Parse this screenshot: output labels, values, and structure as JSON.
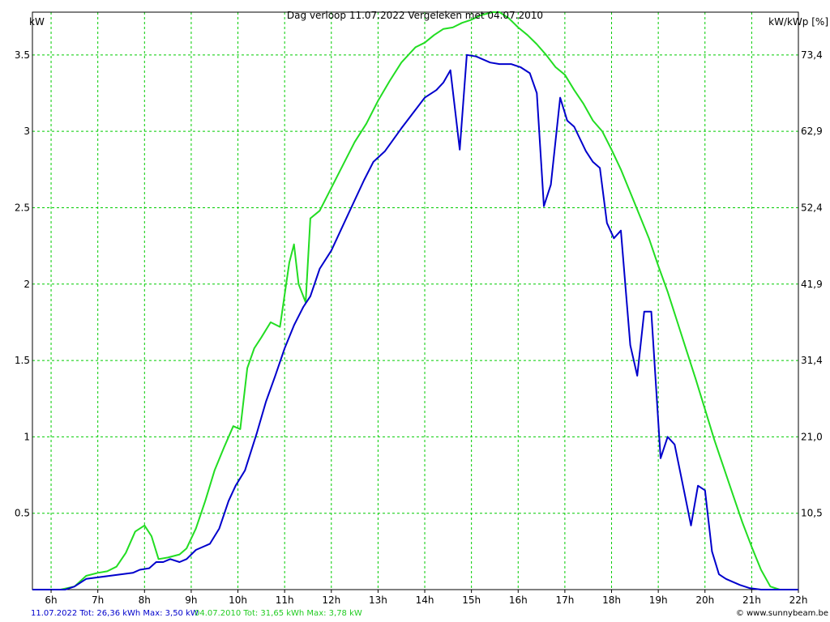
{
  "header": {
    "title": "Dag  verloop 11.07.2022   Vergeleken met 04.07.2010",
    "left_unit": "kW",
    "right_unit": "kW/kWp [%]"
  },
  "footer": {
    "legend_series_1": "11.07.2022 Tot: 26,36 kWh Max: 3,50 kW",
    "legend_series_2": "04.07.2010 Tot: 31,65 kWh Max: 3,78 kW",
    "credit": "© www.sunnybeam.be"
  },
  "colors": {
    "series_1": "#0000cc",
    "series_2": "#22dd22",
    "grid": "#00cc00",
    "axis": "#000000"
  },
  "chart_data": {
    "type": "line",
    "xlim": [
      5.6,
      22
    ],
    "ylim": [
      0,
      3.78
    ],
    "grid": true,
    "x_ticks": [
      6,
      7,
      8,
      9,
      10,
      11,
      12,
      13,
      14,
      15,
      16,
      17,
      18,
      19,
      20,
      21,
      22
    ],
    "x_tick_labels": [
      "6h",
      "7h",
      "8h",
      "9h",
      "10h",
      "11h",
      "12h",
      "13h",
      "14h",
      "15h",
      "16h",
      "17h",
      "18h",
      "19h",
      "20h",
      "21h",
      "22h"
    ],
    "y_ticks": [
      0.5,
      1,
      1.5,
      2,
      2.5,
      3,
      3.5
    ],
    "y_tick_labels": [
      "0.5",
      "1",
      "1.5",
      "2",
      "2.5",
      "3",
      "3.5"
    ],
    "y2_ticks": [
      0.5,
      1,
      1.5,
      2,
      2.5,
      3,
      3.5
    ],
    "y2_tick_labels": [
      "10,5",
      "21,0",
      "31,4",
      "41,9",
      "52,4",
      "62,9",
      "73,4"
    ],
    "series": [
      {
        "name": "11.07.2022",
        "x": [
          5.6,
          6.3,
          6.5,
          6.75,
          7.0,
          7.25,
          7.5,
          7.75,
          7.9,
          8.1,
          8.25,
          8.4,
          8.55,
          8.75,
          8.9,
          9.1,
          9.4,
          9.6,
          9.8,
          9.95,
          10.15,
          10.4,
          10.6,
          10.8,
          11.0,
          11.2,
          11.4,
          11.55,
          11.75,
          12.0,
          12.35,
          12.7,
          12.9,
          13.15,
          13.5,
          13.75,
          14.0,
          14.25,
          14.4,
          14.55,
          14.75,
          14.9,
          15.1,
          15.4,
          15.6,
          15.85,
          16.05,
          16.25,
          16.4,
          16.55,
          16.7,
          16.9,
          17.05,
          17.2,
          17.45,
          17.6,
          17.75,
          17.9,
          18.05,
          18.2,
          18.4,
          18.55,
          18.7,
          18.85,
          19.05,
          19.2,
          19.35,
          19.55,
          19.7,
          19.85,
          20.0,
          20.15,
          20.3,
          20.45,
          20.6,
          20.75,
          20.95,
          21.2,
          21.55,
          21.8,
          22.0
        ],
        "y": [
          0,
          0,
          0.02,
          0.07,
          0.08,
          0.09,
          0.1,
          0.11,
          0.13,
          0.14,
          0.18,
          0.18,
          0.2,
          0.18,
          0.2,
          0.26,
          0.3,
          0.4,
          0.58,
          0.68,
          0.78,
          1.02,
          1.23,
          1.4,
          1.58,
          1.73,
          1.85,
          1.92,
          2.1,
          2.22,
          2.45,
          2.68,
          2.8,
          2.87,
          3.02,
          3.12,
          3.22,
          3.27,
          3.32,
          3.4,
          2.88,
          3.5,
          3.49,
          3.45,
          3.44,
          3.44,
          3.42,
          3.38,
          3.25,
          2.51,
          2.65,
          3.22,
          3.07,
          3.03,
          2.87,
          2.8,
          2.76,
          2.4,
          2.3,
          2.35,
          1.6,
          1.4,
          1.82,
          1.82,
          0.86,
          1.0,
          0.95,
          0.65,
          0.42,
          0.68,
          0.65,
          0.25,
          0.1,
          0.07,
          0.05,
          0.03,
          0.01,
          0,
          0,
          0,
          0
        ]
      },
      {
        "name": "04.07.2010",
        "x": [
          5.6,
          6.2,
          6.5,
          6.75,
          7.0,
          7.2,
          7.4,
          7.6,
          7.8,
          8.0,
          8.15,
          8.3,
          8.5,
          8.75,
          8.9,
          9.1,
          9.3,
          9.5,
          9.7,
          9.9,
          10.05,
          10.2,
          10.35,
          10.5,
          10.7,
          10.9,
          11.1,
          11.2,
          11.3,
          11.45,
          11.55,
          11.75,
          12.0,
          12.25,
          12.5,
          12.75,
          13.0,
          13.25,
          13.5,
          13.8,
          14.0,
          14.2,
          14.4,
          14.6,
          14.8,
          15.0,
          15.2,
          15.45,
          15.6,
          15.8,
          16.0,
          16.2,
          16.4,
          16.6,
          16.8,
          17.0,
          17.2,
          17.4,
          17.6,
          17.8,
          18.0,
          18.2,
          18.4,
          18.6,
          18.8,
          19.0,
          19.2,
          19.4,
          19.6,
          19.8,
          20.0,
          20.2,
          20.4,
          20.6,
          20.8,
          21.0,
          21.2,
          21.4,
          21.6,
          22.0
        ],
        "y": [
          0,
          0,
          0.02,
          0.09,
          0.11,
          0.12,
          0.15,
          0.24,
          0.38,
          0.42,
          0.35,
          0.2,
          0.21,
          0.23,
          0.27,
          0.4,
          0.58,
          0.78,
          0.93,
          1.07,
          1.05,
          1.45,
          1.58,
          1.65,
          1.75,
          1.72,
          2.14,
          2.26,
          2.0,
          1.88,
          2.43,
          2.48,
          2.63,
          2.78,
          2.93,
          3.05,
          3.2,
          3.33,
          3.45,
          3.55,
          3.58,
          3.63,
          3.67,
          3.68,
          3.71,
          3.73,
          3.76,
          3.78,
          3.78,
          3.74,
          3.68,
          3.63,
          3.57,
          3.5,
          3.42,
          3.37,
          3.27,
          3.18,
          3.07,
          3.0,
          2.88,
          2.75,
          2.6,
          2.45,
          2.3,
          2.12,
          1.95,
          1.76,
          1.57,
          1.38,
          1.18,
          0.98,
          0.8,
          0.62,
          0.44,
          0.28,
          0.13,
          0.02,
          0,
          0
        ]
      }
    ]
  }
}
